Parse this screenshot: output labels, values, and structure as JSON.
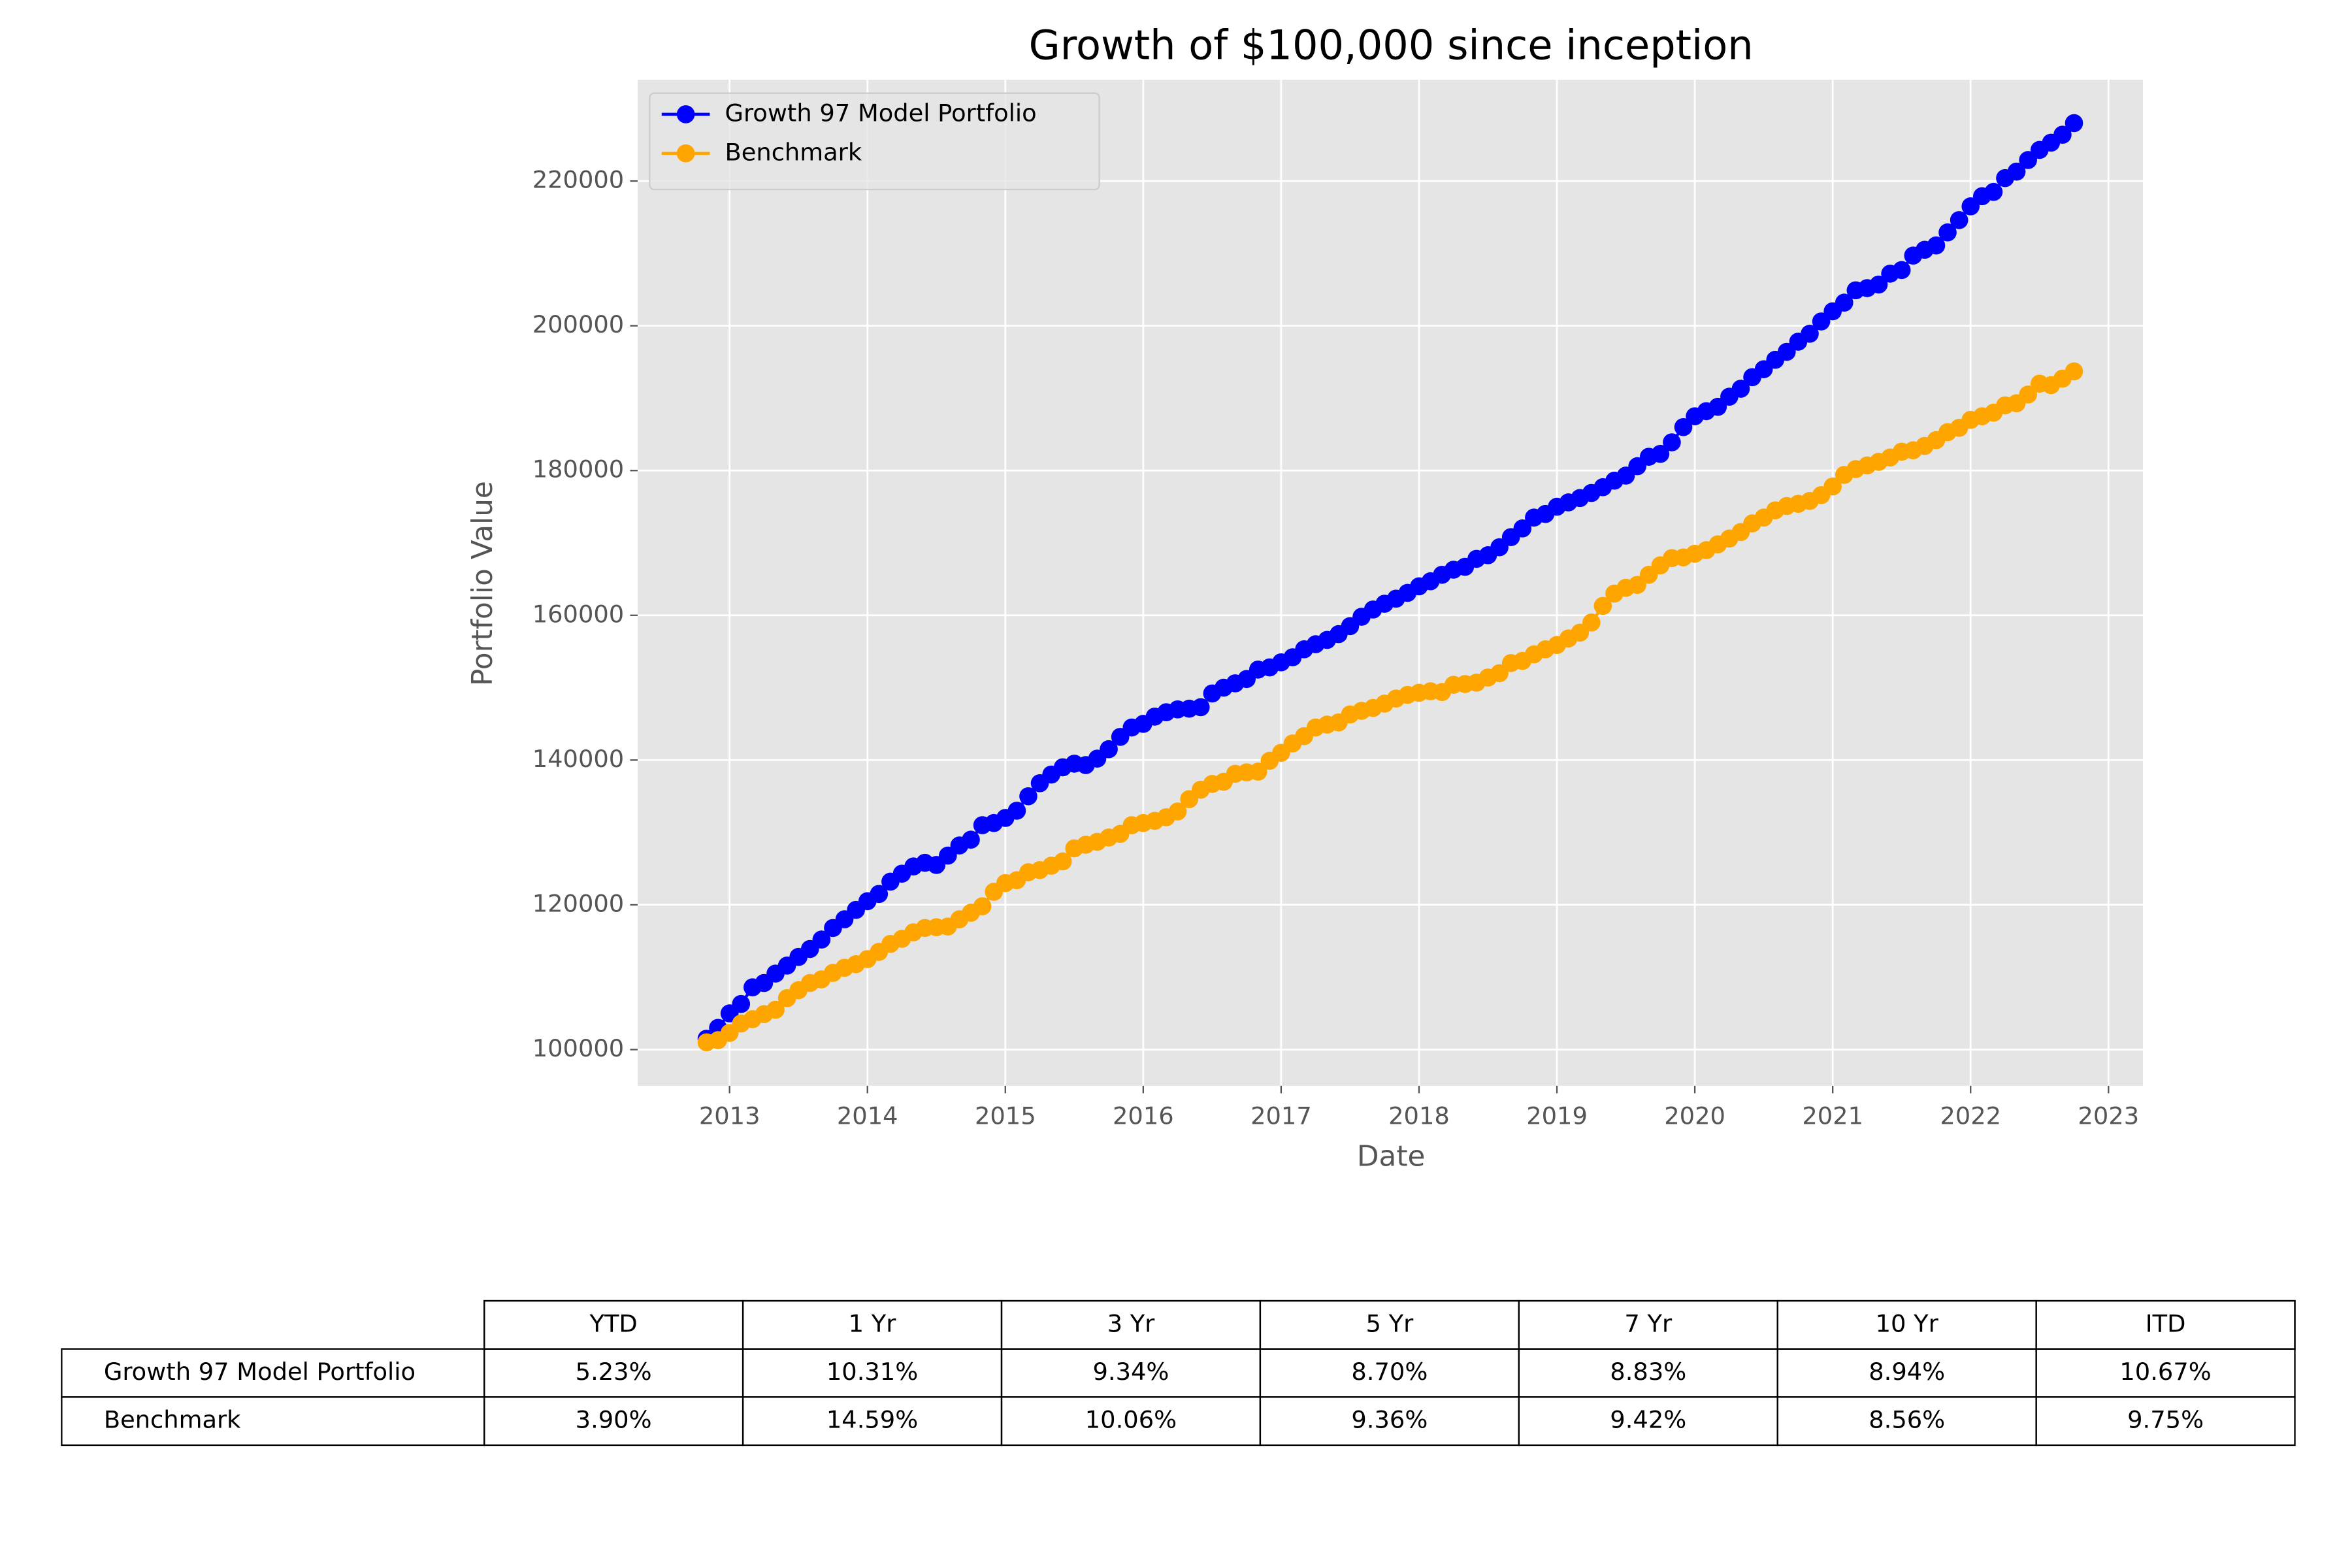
{
  "chart_data": {
    "type": "line",
    "title": "Growth of $100,000 since inception",
    "xlabel": "Date",
    "ylabel": "Portfolio Value",
    "x": [
      "2012-11",
      "2012-12",
      "2013-01",
      "2013-02",
      "2013-03",
      "2013-04",
      "2013-05",
      "2013-06",
      "2013-07",
      "2013-08",
      "2013-09",
      "2013-10",
      "2013-11",
      "2013-12",
      "2014-01",
      "2014-02",
      "2014-03",
      "2014-04",
      "2014-05",
      "2014-06",
      "2014-07",
      "2014-08",
      "2014-09",
      "2014-10",
      "2014-11",
      "2014-12",
      "2015-01",
      "2015-02",
      "2015-03",
      "2015-04",
      "2015-05",
      "2015-06",
      "2015-07",
      "2015-08",
      "2015-09",
      "2015-10",
      "2015-11",
      "2015-12",
      "2016-01",
      "2016-02",
      "2016-03",
      "2016-04",
      "2016-05",
      "2016-06",
      "2016-07",
      "2016-08",
      "2016-09",
      "2016-10",
      "2016-11",
      "2016-12",
      "2017-01",
      "2017-02",
      "2017-03",
      "2017-04",
      "2017-05",
      "2017-06",
      "2017-07",
      "2017-08",
      "2017-09",
      "2017-10",
      "2017-11",
      "2017-12",
      "2018-01",
      "2018-02",
      "2018-03",
      "2018-04",
      "2018-05",
      "2018-06",
      "2018-07",
      "2018-08",
      "2018-09",
      "2018-10",
      "2018-11",
      "2018-12",
      "2019-01",
      "2019-02",
      "2019-03",
      "2019-04",
      "2019-05",
      "2019-06",
      "2019-07",
      "2019-08",
      "2019-09",
      "2019-10",
      "2019-11",
      "2019-12",
      "2020-01",
      "2020-02",
      "2020-03",
      "2020-04",
      "2020-05",
      "2020-06",
      "2020-07",
      "2020-08",
      "2020-09",
      "2020-10",
      "2020-11",
      "2020-12",
      "2021-01",
      "2021-02",
      "2021-03",
      "2021-04",
      "2021-05",
      "2021-06",
      "2021-07",
      "2021-08",
      "2021-09",
      "2021-10",
      "2021-11",
      "2021-12",
      "2022-01",
      "2022-02",
      "2022-03",
      "2022-04",
      "2022-05",
      "2022-06",
      "2022-07",
      "2022-08",
      "2022-09",
      "2022-10"
    ],
    "series": [
      {
        "name": "Growth 97 Model Portfolio",
        "color": "#0000ff",
        "values": [
          101500,
          103000,
          105000,
          106300,
          108600,
          109200,
          110500,
          111600,
          112800,
          113900,
          115200,
          116800,
          118000,
          119300,
          120500,
          121500,
          123200,
          124300,
          125300,
          125800,
          125500,
          126800,
          128200,
          129000,
          131000,
          131300,
          132000,
          133000,
          135000,
          136800,
          138000,
          139000,
          139500,
          139300,
          140200,
          141500,
          143200,
          144500,
          145000,
          146000,
          146600,
          147000,
          147100,
          147300,
          149200,
          150000,
          150600,
          151200,
          152500,
          152800,
          153500,
          154200,
          155300,
          156000,
          156600,
          157400,
          158500,
          159800,
          160800,
          161600,
          162300,
          163100,
          164000,
          164700,
          165600,
          166300,
          166700,
          167800,
          168300,
          169400,
          170800,
          172000,
          173500,
          174000,
          175000,
          175600,
          176200,
          176900,
          177700,
          178600,
          179300,
          180600,
          181900,
          182300,
          183900,
          186000,
          187500,
          188200,
          188800,
          190200,
          191300,
          192900,
          194000,
          195300,
          196400,
          197800,
          198900,
          200600,
          202000,
          203200,
          204900,
          205200,
          205700,
          207200,
          207700,
          209700,
          210500,
          211100,
          212900,
          214600,
          216500,
          217900,
          218500,
          220400,
          221300,
          222900,
          224300,
          225300,
          226400,
          228000
        ]
      },
      {
        "name": "Benchmark",
        "color": "#ffa500",
        "values": [
          101000,
          101300,
          102300,
          103600,
          104200,
          104900,
          105500,
          107100,
          108200,
          109200,
          109700,
          110600,
          111300,
          111800,
          112500,
          113500,
          114600,
          115300,
          116200,
          116800,
          116900,
          117000,
          118000,
          118900,
          119800,
          121800,
          123000,
          123400,
          124500,
          124800,
          125400,
          126000,
          127800,
          128300,
          128700,
          129300,
          129800,
          131000,
          131300,
          131600,
          132100,
          132900,
          134600,
          135900,
          136700,
          137000,
          138100,
          138300,
          138400,
          139900,
          141000,
          142300,
          143300,
          144500,
          144900,
          145200,
          146300,
          146800,
          147200,
          147800,
          148500,
          149000,
          149300,
          149500,
          149400,
          150400,
          150500,
          150700,
          151400,
          152000,
          153400,
          153700,
          154600,
          155300,
          155900,
          156800,
          157600,
          159000,
          161300,
          163000,
          163800,
          164200,
          165600,
          166900,
          167900,
          168000,
          168500,
          169000,
          169800,
          170600,
          171500,
          172700,
          173500,
          174500,
          175100,
          175400,
          175800,
          176600,
          177800,
          179400,
          180200,
          180700,
          181200,
          181800,
          182600,
          182800,
          183400,
          184200,
          185300,
          185900,
          187000,
          187500,
          188000,
          189000,
          189300,
          190500,
          192000,
          191800,
          192700,
          193700
        ]
      }
    ],
    "xlim": [
      "2012-05",
      "2023-04"
    ],
    "xticks": [
      "2013",
      "2014",
      "2015",
      "2016",
      "2017",
      "2018",
      "2019",
      "2020",
      "2021",
      "2022",
      "2023"
    ],
    "ylim": [
      95000,
      234000
    ],
    "yticks": [
      100000,
      120000,
      140000,
      160000,
      180000,
      200000,
      220000
    ],
    "grid": true,
    "legend": "upper left"
  },
  "table": {
    "columns": [
      "YTD",
      "1 Yr",
      "3 Yr",
      "5 Yr",
      "7 Yr",
      "10 Yr",
      "ITD"
    ],
    "rows": [
      {
        "label": "Growth 97 Model Portfolio",
        "values": [
          "5.23%",
          "10.31%",
          "9.34%",
          "8.70%",
          "8.83%",
          "8.94%",
          "10.67%"
        ]
      },
      {
        "label": "Benchmark",
        "values": [
          "3.90%",
          "14.59%",
          "10.06%",
          "9.36%",
          "9.42%",
          "8.56%",
          "9.75%"
        ]
      }
    ]
  }
}
